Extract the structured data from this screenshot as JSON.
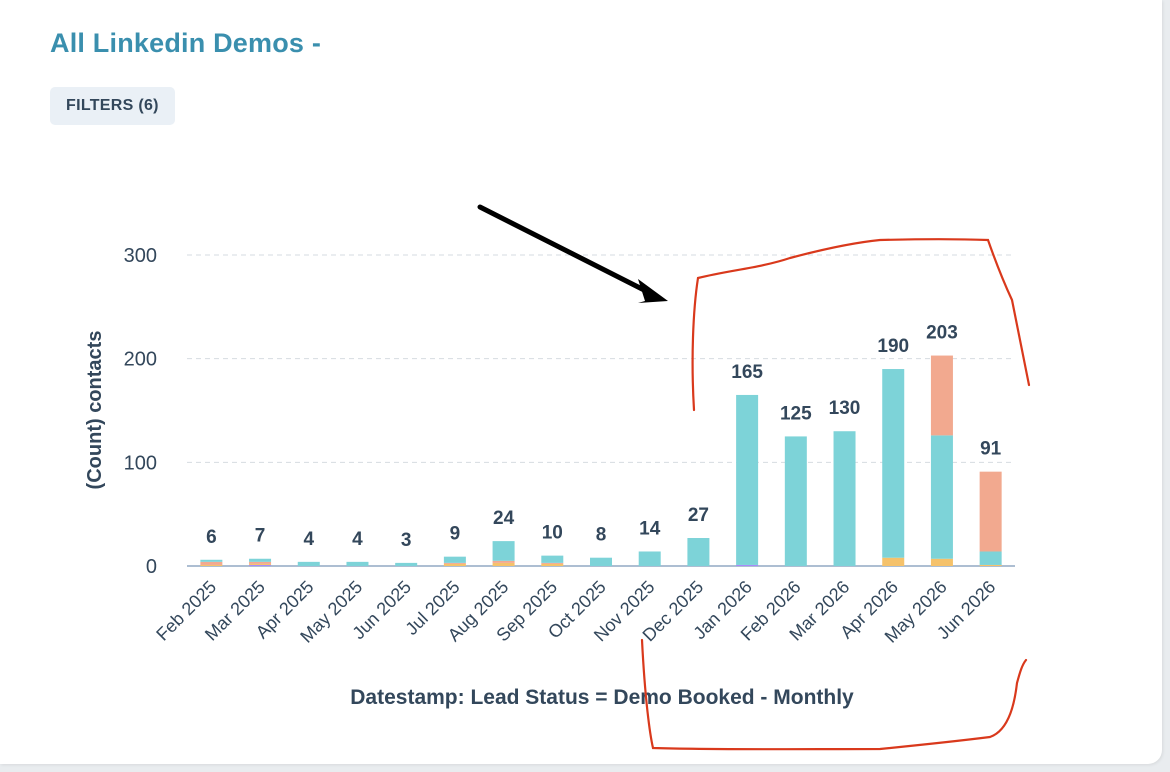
{
  "report": {
    "title": "All Linkedin Demos -",
    "filters_label": "FILTERS (6)"
  },
  "chart_data": {
    "type": "bar",
    "stacked": true,
    "xlabel": "Datestamp: Lead Status = Demo Booked - Monthly",
    "ylabel": "(Count) contacts",
    "ylim": [
      0,
      300
    ],
    "yticks": [
      0,
      100,
      200,
      300
    ],
    "grid": true,
    "categories": [
      "Feb 2025",
      "Mar 2025",
      "Apr 2025",
      "May 2025",
      "Jun 2025",
      "Jul 2025",
      "Aug 2025",
      "Sep 2025",
      "Oct 2025",
      "Nov 2025",
      "Dec 2025",
      "Jan 2026",
      "Feb 2026",
      "Mar 2026",
      "Apr 2026",
      "May 2026",
      "Jun 2026"
    ],
    "totals": [
      6,
      7,
      4,
      4,
      3,
      9,
      24,
      10,
      8,
      14,
      27,
      165,
      125,
      130,
      190,
      203,
      91
    ],
    "series": [
      {
        "color": "#a78bfa",
        "values": [
          0,
          1,
          0,
          0,
          0,
          0,
          0,
          0,
          0,
          0,
          0,
          1,
          0,
          0,
          0,
          0,
          0
        ]
      },
      {
        "color": "#f5c26b",
        "values": [
          1,
          1,
          0,
          0,
          0,
          2,
          3,
          2,
          0,
          0,
          0,
          0,
          0,
          0,
          8,
          7,
          1
        ]
      },
      {
        "color": "#f2a98f",
        "values": [
          3,
          2,
          0,
          0,
          0,
          1,
          2,
          1,
          0,
          0,
          0,
          0,
          0,
          0,
          0,
          0,
          0
        ]
      },
      {
        "color": "#7dd3d8",
        "values": [
          2,
          3,
          4,
          4,
          3,
          6,
          19,
          7,
          8,
          14,
          27,
          164,
          125,
          130,
          182,
          119,
          13
        ]
      },
      {
        "color": "#f2a98f",
        "values": [
          0,
          0,
          0,
          0,
          0,
          0,
          0,
          0,
          0,
          0,
          0,
          0,
          0,
          0,
          0,
          77,
          77
        ]
      }
    ]
  },
  "annotations": {
    "arrow_color": "#000000",
    "highlight_color": "#d9391c"
  }
}
